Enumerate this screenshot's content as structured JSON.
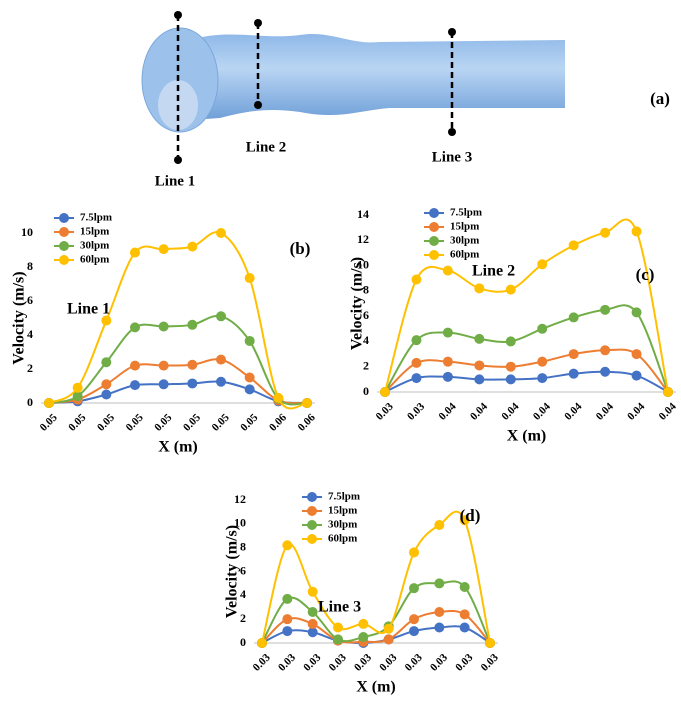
{
  "figure": {
    "panel_label": "(a)",
    "lines": [
      "Line 1",
      "Line 2",
      "Line 3"
    ]
  },
  "chart_data": [
    {
      "type": "line",
      "panel_label": "(b)",
      "annotation": "Line 1",
      "x_label": "X (m)",
      "y_label": "Velocity (m/s)",
      "categories": [
        "0.05",
        "0.05",
        "0.05",
        "0.05",
        "0.05",
        "0.05",
        "0.05",
        "0.05",
        "0.06",
        "0.06"
      ],
      "ylim": [
        0,
        10
      ],
      "yticks": [
        0,
        2,
        4,
        6,
        8,
        10
      ],
      "series": [
        {
          "name": "7.5lpm",
          "color": "#4472c4",
          "values": [
            0,
            0.1,
            0.5,
            1.05,
            1.1,
            1.15,
            1.25,
            0.8,
            0.1,
            0
          ]
        },
        {
          "name": "15lpm",
          "color": "#ed7d31",
          "values": [
            0,
            0.2,
            1.1,
            2.2,
            2.2,
            2.25,
            2.55,
            1.5,
            0.15,
            0
          ]
        },
        {
          "name": "30lpm",
          "color": "#70ad47",
          "values": [
            0,
            0.4,
            2.4,
            4.45,
            4.5,
            4.6,
            5.1,
            3.65,
            0.25,
            0
          ]
        },
        {
          "name": "60lpm",
          "color": "#ffc000",
          "values": [
            0,
            0.9,
            4.85,
            8.85,
            9.05,
            9.2,
            10.0,
            7.35,
            0.3,
            0
          ]
        }
      ]
    },
    {
      "type": "line",
      "panel_label": "(c)",
      "annotation": "Line 2",
      "x_label": "X (m)",
      "y_label": "Velocity (m/s)",
      "categories": [
        "0.03",
        "0.03",
        "0.04",
        "0.04",
        "0.04",
        "0.04",
        "0.04",
        "0.04",
        "0.04",
        "0.04"
      ],
      "ylim": [
        0,
        14
      ],
      "yticks": [
        0,
        2,
        4,
        6,
        8,
        10,
        12,
        14
      ],
      "series": [
        {
          "name": "7.5lpm",
          "color": "#4472c4",
          "values": [
            0,
            1.1,
            1.2,
            1.0,
            1.0,
            1.1,
            1.45,
            1.6,
            1.3,
            0
          ]
        },
        {
          "name": "15lpm",
          "color": "#ed7d31",
          "values": [
            0,
            2.3,
            2.4,
            2.1,
            2.0,
            2.4,
            3.0,
            3.3,
            3.0,
            0
          ]
        },
        {
          "name": "30lpm",
          "color": "#70ad47",
          "values": [
            0,
            4.1,
            4.7,
            4.2,
            4.0,
            5.0,
            5.9,
            6.5,
            6.3,
            0
          ]
        },
        {
          "name": "60lpm",
          "color": "#ffc000",
          "values": [
            0,
            8.9,
            9.6,
            8.2,
            8.1,
            10.1,
            11.6,
            12.6,
            12.7,
            0
          ]
        }
      ]
    },
    {
      "type": "line",
      "panel_label": "(d)",
      "annotation": "Line 3",
      "x_label": "X (m)",
      "y_label": "Velocity (m/s)",
      "categories": [
        "0.03",
        "0.03",
        "0.03",
        "0.03",
        "0.03",
        "0.03",
        "0.03",
        "0.03",
        "0.03",
        "0.03"
      ],
      "ylim": [
        0,
        12
      ],
      "yticks": [
        0,
        2,
        4,
        6,
        8,
        10,
        12
      ],
      "series": [
        {
          "name": "7.5lpm",
          "color": "#4472c4",
          "values": [
            0,
            1.0,
            0.9,
            0.2,
            0,
            0.3,
            1.0,
            1.3,
            1.3,
            0
          ]
        },
        {
          "name": "15lpm",
          "color": "#ed7d31",
          "values": [
            0,
            2.0,
            1.6,
            0.2,
            0.1,
            0.3,
            2.0,
            2.6,
            2.4,
            0
          ]
        },
        {
          "name": "30lpm",
          "color": "#70ad47",
          "values": [
            0,
            3.7,
            2.6,
            0.3,
            0.5,
            1.4,
            4.6,
            5.0,
            4.7,
            0
          ]
        },
        {
          "name": "60lpm",
          "color": "#ffc000",
          "values": [
            0,
            8.2,
            4.3,
            1.3,
            1.6,
            1.2,
            7.6,
            9.9,
            10.3,
            0
          ]
        }
      ]
    }
  ]
}
